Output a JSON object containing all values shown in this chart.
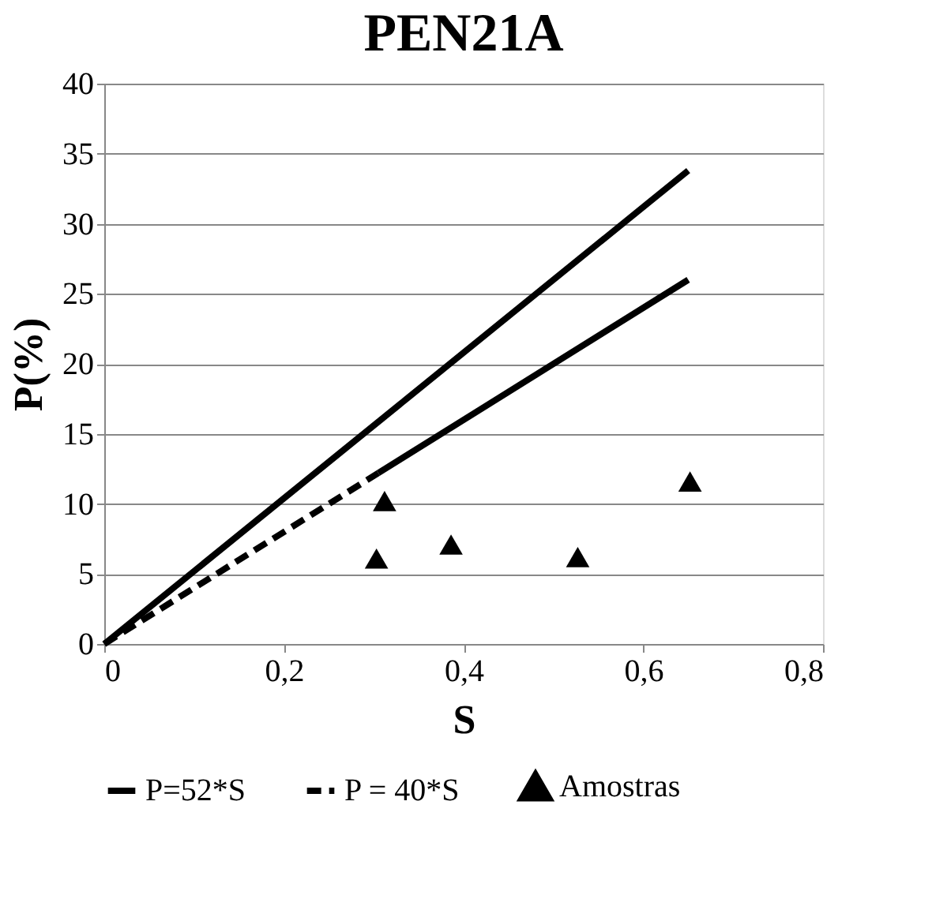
{
  "chart_data": {
    "type": "line",
    "title": "PEN21A",
    "xlabel": "S",
    "ylabel": "P(%)",
    "xlim": [
      0,
      0.8
    ],
    "xticks": [
      {
        "value": 0,
        "label": "0"
      },
      {
        "value": 0.2,
        "label": "0,2"
      },
      {
        "value": 0.4,
        "label": "0,4"
      },
      {
        "value": 0.6,
        "label": "0,6"
      },
      {
        "value": 0.8,
        "label": "0,8"
      }
    ],
    "ylim": [
      0,
      40
    ],
    "yticks": [
      0,
      5,
      10,
      15,
      20,
      25,
      30,
      35,
      40
    ],
    "grid": "y",
    "legend": "bottom",
    "series": [
      {
        "name": "P=52*S",
        "line_style": "solid",
        "color": "#000000",
        "x": [
          0,
          0.65
        ],
        "values": [
          0,
          33.8
        ]
      },
      {
        "name": "P = 40*S",
        "line_style": "dashed",
        "color": "#000000",
        "x": [
          0,
          0.305
        ],
        "values": [
          0,
          12.2
        ]
      },
      {
        "line_style": "solid",
        "color": "#000000",
        "x": [
          0.305,
          0.65
        ],
        "values": [
          12.2,
          26
        ]
      },
      {
        "name": "Amostras",
        "type": "scatter",
        "marker": "triangle",
        "color": "#000000",
        "x": [
          0.303,
          0.312,
          0.386,
          0.527,
          0.652
        ],
        "values": [
          6.1,
          10.2,
          7.1,
          6.2,
          11.6
        ]
      }
    ]
  }
}
